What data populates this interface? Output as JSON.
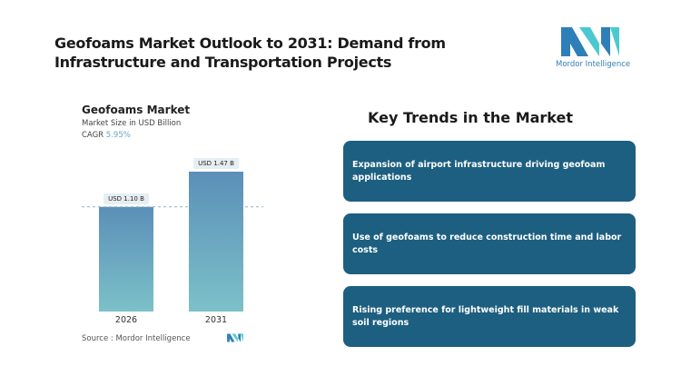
{
  "header": {
    "title": "Geofoams Market Outlook to 2031: Demand from Infrastructure and Transportation Projects",
    "logo_text": "Mordor Intelligence"
  },
  "chart_data": {
    "type": "bar",
    "title": "Geofoams Market",
    "subtitle": "Market Size in USD Billion",
    "cagr_label": "CAGR",
    "cagr_value": "5.95%",
    "categories": [
      "2026",
      "2031"
    ],
    "values": [
      1.1,
      1.47
    ],
    "data_labels": [
      "USD 1.10 B",
      "USD 1.47 B"
    ],
    "ylabel": "USD Billion",
    "ylim": [
      0,
      1.47
    ],
    "grid": false,
    "colors": {
      "bar_top": "#5b8fb8",
      "bar_bottom": "#7cc1c9",
      "reference_line": "#8fb3c6"
    }
  },
  "source": "Source :  Mordor Intelligence",
  "trends": {
    "title": "Key Trends in the Market",
    "items": [
      "Expansion of airport infrastructure driving geofoam applications",
      "Use of geofoams to reduce construction time and labor costs",
      "Rising preference for lightweight fill materials in weak soil regions"
    ]
  }
}
